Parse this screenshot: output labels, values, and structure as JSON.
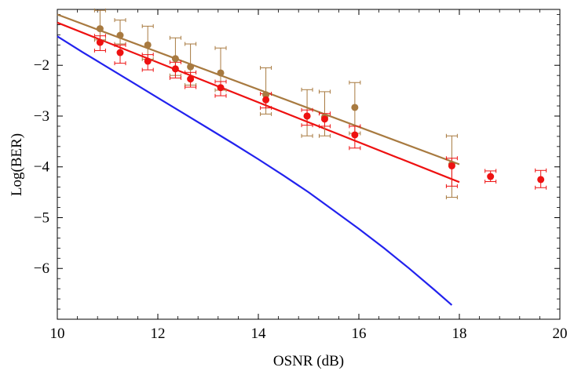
{
  "chart_data": {
    "type": "scatter",
    "title": "",
    "xlabel": "OSNR (dB)",
    "ylabel": "Log(BER)",
    "xlim": [
      10,
      20
    ],
    "ylim": [
      -7.0,
      -0.9
    ],
    "x_ticks": [
      10,
      12,
      14,
      16,
      18,
      20
    ],
    "x_tick_labels": [
      "10",
      "12",
      "14",
      "16",
      "18",
      "20"
    ],
    "y_ticks": [
      -2,
      -3,
      -4,
      -5,
      -6
    ],
    "y_tick_labels": [
      "−2",
      "−3",
      "−4",
      "−5",
      "−6"
    ],
    "grid": false,
    "legend": "none",
    "series": [
      {
        "color": "#A87A40",
        "kind": "points_with_error_bars",
        "points": [
          {
            "x": 10.85,
            "y": -1.28,
            "err_lo": 0.22,
            "err_hi": 0.36
          },
          {
            "x": 11.25,
            "y": -1.41,
            "err_lo": 0.17,
            "err_hi": 0.3
          },
          {
            "x": 11.8,
            "y": -1.6,
            "err_lo": 0.28,
            "err_hi": 0.37
          },
          {
            "x": 12.35,
            "y": -1.87,
            "err_lo": 0.33,
            "err_hi": 0.41
          },
          {
            "x": 12.65,
            "y": -2.03,
            "err_lo": 0.36,
            "err_hi": 0.45
          },
          {
            "x": 13.25,
            "y": -2.15,
            "err_lo": 0.34,
            "err_hi": 0.49
          },
          {
            "x": 14.15,
            "y": -2.58,
            "err_lo": 0.38,
            "err_hi": 0.53
          },
          {
            "x": 14.97,
            "y": -3.0,
            "err_lo": 0.39,
            "err_hi": 0.52
          },
          {
            "x": 15.32,
            "y": -3.02,
            "err_lo": 0.37,
            "err_hi": 0.5
          },
          {
            "x": 15.92,
            "y": -2.83,
            "err_lo": 0.51,
            "err_hi": 0.49
          },
          {
            "x": 17.85,
            "y": -3.95,
            "err_lo": 0.65,
            "err_hi": 0.56
          }
        ]
      },
      {
        "color": "#EE1111",
        "kind": "points_with_error_bars",
        "points": [
          {
            "x": 10.85,
            "y": -1.55,
            "err_lo": 0.16,
            "err_hi": 0.13
          },
          {
            "x": 11.25,
            "y": -1.75,
            "err_lo": 0.21,
            "err_hi": 0.15
          },
          {
            "x": 11.8,
            "y": -1.92,
            "err_lo": 0.17,
            "err_hi": 0.13
          },
          {
            "x": 12.35,
            "y": -2.07,
            "err_lo": 0.18,
            "err_hi": 0.13
          },
          {
            "x": 12.65,
            "y": -2.27,
            "err_lo": 0.16,
            "err_hi": 0.13
          },
          {
            "x": 13.25,
            "y": -2.44,
            "err_lo": 0.16,
            "err_hi": 0.12
          },
          {
            "x": 14.15,
            "y": -2.68,
            "err_lo": 0.16,
            "err_hi": 0.12
          },
          {
            "x": 14.97,
            "y": -3.0,
            "err_lo": 0.18,
            "err_hi": 0.12
          },
          {
            "x": 15.32,
            "y": -3.06,
            "err_lo": 0.14,
            "err_hi": 0.11
          },
          {
            "x": 15.92,
            "y": -3.37,
            "err_lo": 0.26,
            "err_hi": 0.17
          },
          {
            "x": 17.85,
            "y": -3.98,
            "err_lo": 0.4,
            "err_hi": 0.15
          },
          {
            "x": 18.62,
            "y": -4.19,
            "err_lo": 0.1,
            "err_hi": 0.11
          },
          {
            "x": 19.62,
            "y": -4.25,
            "err_lo": 0.16,
            "err_hi": 0.18
          }
        ]
      },
      {
        "color": "#A87A40",
        "kind": "line",
        "x": [
          10.0,
          18.0
        ],
        "y": [
          -1.0,
          -3.95
        ]
      },
      {
        "color": "#EE1111",
        "kind": "line",
        "x": [
          10.0,
          18.0
        ],
        "y": [
          -1.16,
          -4.3
        ]
      },
      {
        "color": "#2222EE",
        "kind": "line",
        "x": [
          10.0,
          10.5,
          11.0,
          11.5,
          12.0,
          12.5,
          13.0,
          13.5,
          14.0,
          14.5,
          15.0,
          15.5,
          16.0,
          16.5,
          17.0,
          17.5,
          17.85
        ],
        "y": [
          -1.43,
          -1.74,
          -2.04,
          -2.34,
          -2.64,
          -2.94,
          -3.24,
          -3.54,
          -3.85,
          -4.17,
          -4.5,
          -4.86,
          -5.22,
          -5.6,
          -6.0,
          -6.42,
          -6.72
        ]
      }
    ]
  }
}
